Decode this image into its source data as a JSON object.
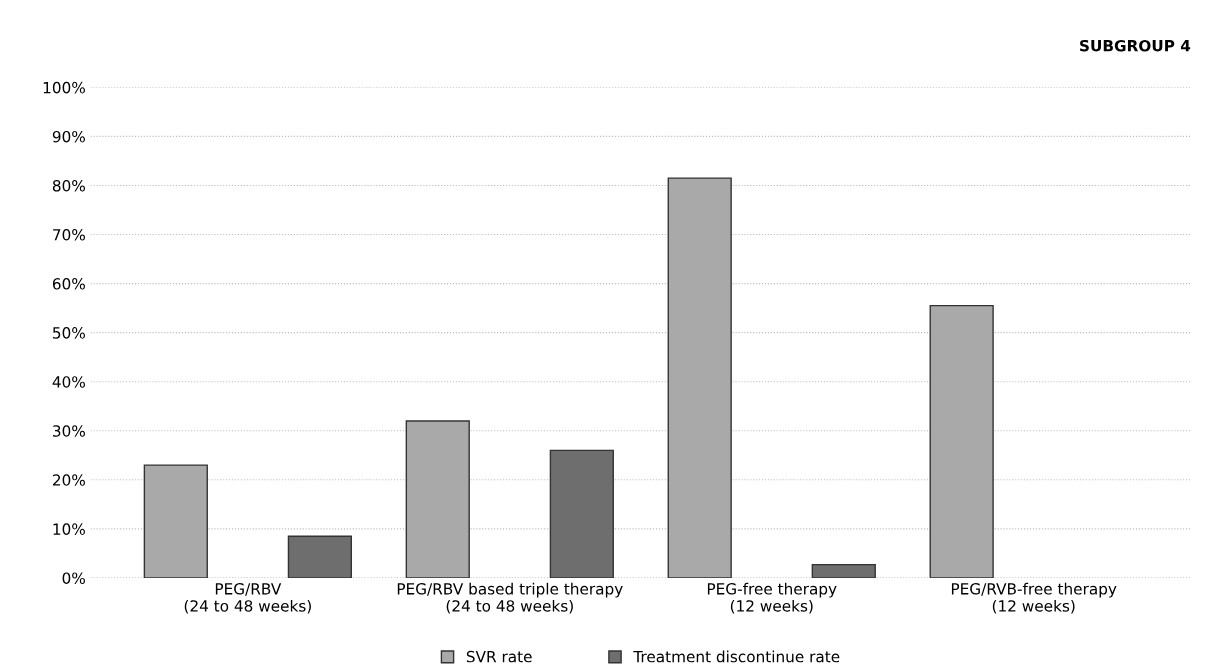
{
  "chart_data": {
    "type": "bar",
    "title": "SUBGROUP 4",
    "categories": [
      "PEG/RBV\n(24 to 48 weeks)",
      "PEG/RBV based triple therapy\n(24 to 48 weeks)",
      "PEG-free therapy\n(12 weeks)",
      "PEG/RVB-free therapy\n(12 weeks)"
    ],
    "series": [
      {
        "name": "SVR rate",
        "color": "#a9a9a9",
        "values": [
          23,
          32,
          81.5,
          55.5
        ]
      },
      {
        "name": "Treatment discontinue rate",
        "color": "#6e6e6e",
        "values": [
          8.5,
          26,
          2.7,
          null
        ]
      }
    ],
    "ylim": [
      0,
      100
    ],
    "yticks": [
      {
        "value": 0,
        "label": "0%"
      },
      {
        "value": 10,
        "label": "10%"
      },
      {
        "value": 20,
        "label": "20%"
      },
      {
        "value": 30,
        "label": "30%"
      },
      {
        "value": 40,
        "label": "40%"
      },
      {
        "value": 50,
        "label": "50%"
      },
      {
        "value": 60,
        "label": "60%"
      },
      {
        "value": 70,
        "label": "70%"
      },
      {
        "value": 80,
        "label": "80%"
      },
      {
        "value": 90,
        "label": "90%"
      },
      {
        "value": 100,
        "label": "100%"
      }
    ],
    "grid": "y",
    "legend": "bottom"
  }
}
